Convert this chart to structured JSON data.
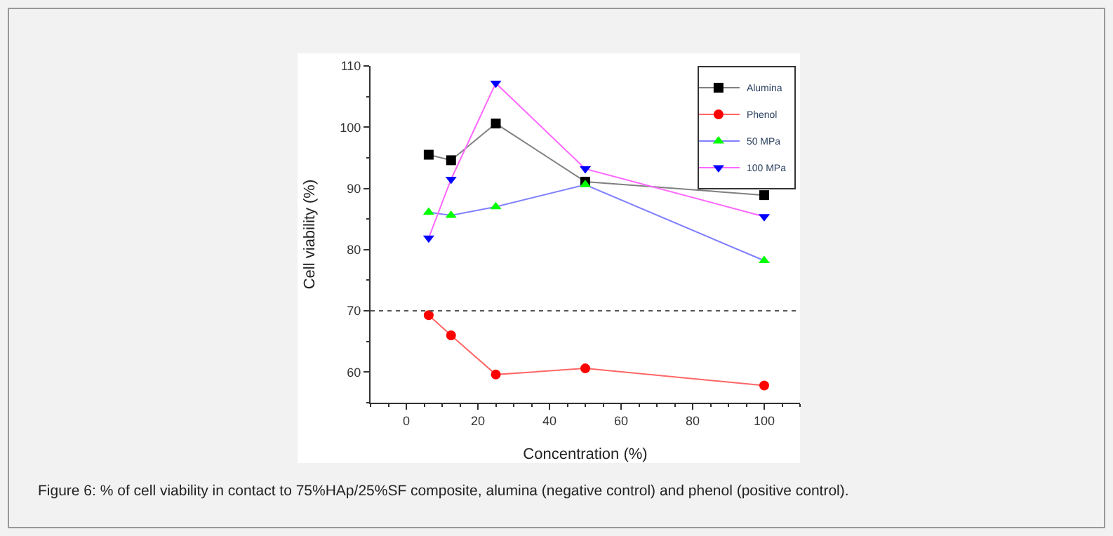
{
  "chart_data": {
    "type": "line",
    "xlabel": "Concentration (%)",
    "ylabel": "Cell viability (%)",
    "x": [
      6.25,
      12.5,
      25,
      50,
      100
    ],
    "series": [
      {
        "name": "Alumina",
        "color": "#808080",
        "colors": [
          "#000000",
          "#000000",
          "#000000",
          "#000000",
          "#000000"
        ],
        "marker": "square",
        "values": [
          95.5,
          94.6,
          100.6,
          91.1,
          88.9
        ]
      },
      {
        "name": "Phenol",
        "color": "#ff6666",
        "colors": [
          "#ff0000",
          "#ff0000",
          "#ff0000",
          "#ff0000",
          "#ff0000"
        ],
        "marker": "circle",
        "values": [
          69.3,
          66.0,
          59.6,
          60.6,
          57.8
        ]
      },
      {
        "name": "50 MPa",
        "color": "#8080ff",
        "colors": [
          "#00ff00",
          "#00ff00",
          "#00ff00",
          "#00ff00",
          "#00ff00"
        ],
        "marker": "triangle",
        "values": [
          86.1,
          85.6,
          87.0,
          90.6,
          78.2
        ]
      },
      {
        "name": "100 MPa",
        "color": "#ff66ff",
        "colors": [
          "#0000ff",
          "#0000ff",
          "#0000ff",
          "#0000ff",
          "#0000ff"
        ],
        "marker": "triangle-down",
        "values": [
          81.9,
          91.5,
          107.2,
          93.2,
          85.4
        ]
      }
    ],
    "xlim": [
      -10,
      110
    ],
    "xticks": [
      0,
      20,
      40,
      60,
      80,
      100
    ],
    "ylim": [
      55,
      110
    ],
    "yticks": [
      60,
      70,
      80,
      90,
      100,
      110
    ],
    "ref_lines": [
      {
        "axis": "y",
        "value": 70,
        "color": "#555555",
        "line_style": "dotted"
      }
    ],
    "legend": "top right",
    "annotations": [
      "Figure 6: % of cell viability in contact to 75%HAp/25%SF composite, alumina (negative control) and phenol (positive control)."
    ]
  }
}
